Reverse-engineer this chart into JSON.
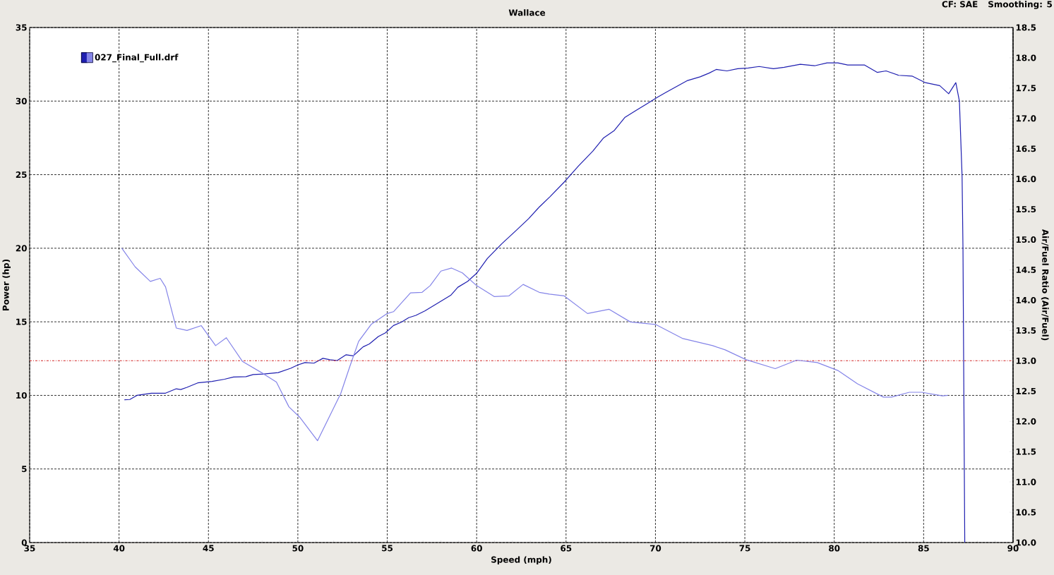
{
  "chart_data": {
    "type": "line",
    "subtitle": "Wallace",
    "xlabel": "Speed (mph)",
    "ylabel": "Power (hp)",
    "y2label": "Air/Fuel Ratio (Air/Fuel)",
    "annotations": [
      "CF: SAE",
      "Smoothing: 5"
    ],
    "xlim": [
      35,
      90
    ],
    "xticks": [
      35,
      40,
      45,
      50,
      55,
      60,
      65,
      70,
      75,
      80,
      85,
      90
    ],
    "ylim": [
      0,
      35
    ],
    "yticks": [
      0,
      5,
      10,
      15,
      20,
      25,
      30,
      35
    ],
    "y2lim": [
      10,
      18.5
    ],
    "y2ticks": [
      {
        "value": 10,
        "label": "10.0"
      },
      10.5,
      {
        "value": 11,
        "label": "11.0"
      },
      11.5,
      {
        "value": 12,
        "label": "12.0"
      },
      12.5,
      {
        "value": 13,
        "label": "13.0"
      },
      13.5,
      {
        "value": 14,
        "label": "14.0"
      },
      14.5,
      {
        "value": 15,
        "label": "15.0"
      },
      15.5,
      {
        "value": 16,
        "label": "16.0"
      },
      16.5,
      {
        "value": 17,
        "label": "17.0"
      },
      17.5,
      {
        "value": 18,
        "label": "18.0"
      },
      18.5
    ],
    "grid": true,
    "legend": "top left",
    "marker": "none",
    "line_style": "solid",
    "ref_lines": [
      {
        "axis": "y2",
        "value": 13.0,
        "color": "#d02020",
        "line_style": "dashdot"
      }
    ],
    "series": [
      {
        "name": "027_Final_Full.drf",
        "color": "#1f1fb0",
        "x": [
          40.3,
          40.6,
          41.0,
          41.8,
          42.6,
          43.2,
          43.45,
          43.8,
          44.4,
          45.2,
          45.9,
          46.4,
          47.1,
          47.5,
          48.1,
          48.9,
          49.6,
          50.0,
          50.4,
          50.9,
          51.4,
          51.8,
          52.2,
          52.7,
          53.1,
          53.65,
          54.0,
          54.5,
          54.9,
          55.35,
          55.8,
          56.2,
          56.6,
          57.1,
          57.9,
          58.55,
          58.95,
          59.5,
          60.0,
          60.6,
          61.4,
          62.2,
          62.9,
          63.5,
          64.1,
          64.9,
          65.7,
          66.5,
          67.1,
          67.7,
          68.3,
          68.9,
          69.5,
          70.1,
          70.6,
          71.2,
          71.8,
          72.5,
          73.0,
          73.4,
          74.0,
          74.6,
          75.2,
          75.8,
          76.6,
          77.2,
          78.1,
          78.9,
          79.6,
          80.2,
          80.75,
          81.7,
          82.4,
          82.9,
          83.6,
          84.35,
          85.1,
          85.9,
          86.4,
          86.8,
          87.0,
          87.15,
          87.2,
          87.25,
          87.3
        ],
        "values": [
          9.7,
          9.72,
          10.0,
          10.15,
          10.15,
          10.45,
          10.4,
          10.55,
          10.85,
          10.95,
          11.1,
          11.25,
          11.27,
          11.42,
          11.45,
          11.55,
          11.84,
          12.07,
          12.23,
          12.19,
          12.52,
          12.42,
          12.37,
          12.76,
          12.69,
          13.3,
          13.5,
          14.0,
          14.25,
          14.75,
          14.98,
          15.28,
          15.44,
          15.74,
          16.32,
          16.8,
          17.35,
          17.75,
          18.3,
          19.3,
          20.3,
          21.2,
          22.0,
          22.8,
          23.5,
          24.5,
          25.6,
          26.6,
          27.5,
          28.0,
          28.9,
          29.35,
          29.8,
          30.25,
          30.6,
          31.0,
          31.4,
          31.65,
          31.9,
          32.15,
          32.05,
          32.2,
          32.25,
          32.35,
          32.2,
          32.3,
          32.5,
          32.4,
          32.6,
          32.6,
          32.45,
          32.45,
          31.95,
          32.05,
          31.75,
          31.7,
          31.25,
          31.05,
          30.5,
          31.25,
          30.0,
          24.9,
          20.0,
          10.0,
          0
        ]
      },
      {
        "color": "#8484e8",
        "axis": "y2",
        "x": [
          40.15,
          40.9,
          41.75,
          42.3,
          42.6,
          43.2,
          43.8,
          44.6,
          45.4,
          46.0,
          46.9,
          48.05,
          48.8,
          49.5,
          50.1,
          51.1,
          51.75,
          52.4,
          52.9,
          53.4,
          54.1,
          55.0,
          55.35,
          56.3,
          56.95,
          57.4,
          58.0,
          58.6,
          59.2,
          60.0,
          60.98,
          61.8,
          62.6,
          63.5,
          64.07,
          64.9,
          66.2,
          67.4,
          68.6,
          70.0,
          71.5,
          73.2,
          73.9,
          75.05,
          76.7,
          77.9,
          79.05,
          80.2,
          81.3,
          82.75,
          83.2,
          84.2,
          84.9,
          86.05,
          86.35
        ],
        "values": [
          14.86,
          14.55,
          14.31,
          14.36,
          14.22,
          13.54,
          13.5,
          13.58,
          13.25,
          13.38,
          12.99,
          12.79,
          12.65,
          12.24,
          12.07,
          11.68,
          12.07,
          12.46,
          12.9,
          13.32,
          13.6,
          13.78,
          13.81,
          14.12,
          14.13,
          14.24,
          14.48,
          14.53,
          14.45,
          14.24,
          14.06,
          14.07,
          14.26,
          14.13,
          14.1,
          14.07,
          13.78,
          13.85,
          13.64,
          13.6,
          13.37,
          13.25,
          13.18,
          13.02,
          12.87,
          13.01,
          12.97,
          12.84,
          12.62,
          12.4,
          12.4,
          12.48,
          12.48,
          12.42,
          12.43
        ]
      }
    ]
  }
}
